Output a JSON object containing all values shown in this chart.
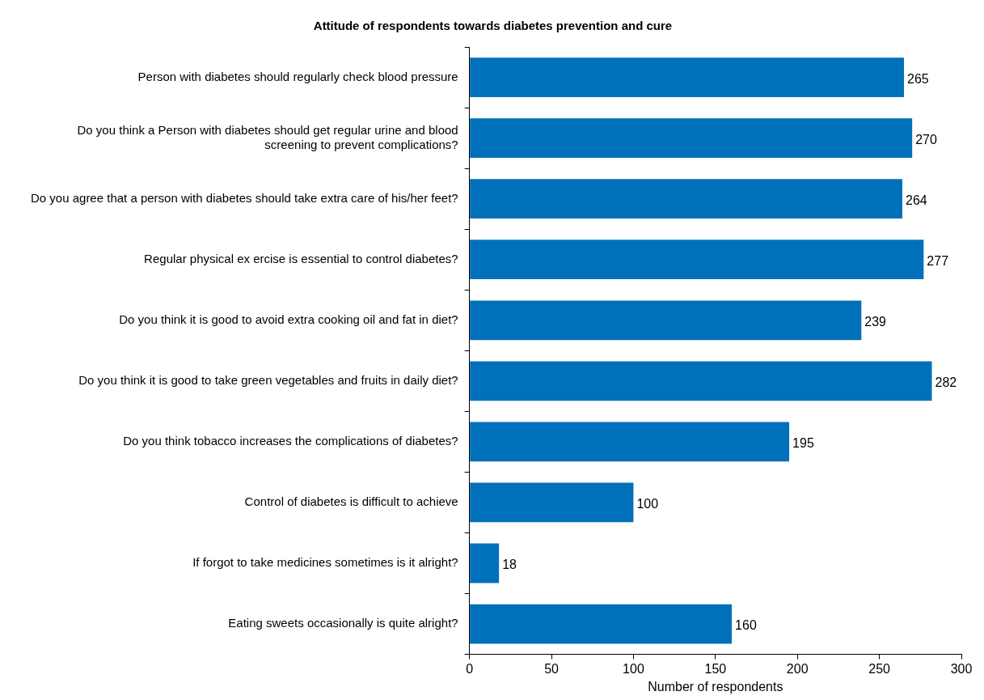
{
  "chart_data": {
    "type": "bar",
    "orientation": "horizontal",
    "title": "Attitude of respondents towards diabetes prevention and cure",
    "xlabel": "Number of respondents",
    "categories": [
      "Person with diabetes should regularly check blood pressure",
      "Do you think a Person with diabetes should get regular urine and blood screening to prevent complications?",
      "Do you agree that a person with diabetes should take extra care of his/her feet?",
      "Regular physical ex ercise is essential to control diabetes?",
      "Do you think it is good to avoid extra cooking oil and fat in diet?",
      "Do you think it is good to take green vegetables and fruits in daily diet?",
      "Do you think tobacco increases the complications of diabetes?",
      "Control of diabetes is difficult to achieve",
      "If forgot to take medicines sometimes is it alright?",
      "Eating sweets occasionally is quite alright?"
    ],
    "values": [
      265,
      270,
      264,
      277,
      239,
      282,
      195,
      100,
      18,
      160
    ],
    "color": "#0070ba",
    "data_labels": true,
    "xlim": [
      0,
      300
    ],
    "xticks": [
      0,
      50,
      100,
      150,
      200,
      250,
      300
    ]
  }
}
